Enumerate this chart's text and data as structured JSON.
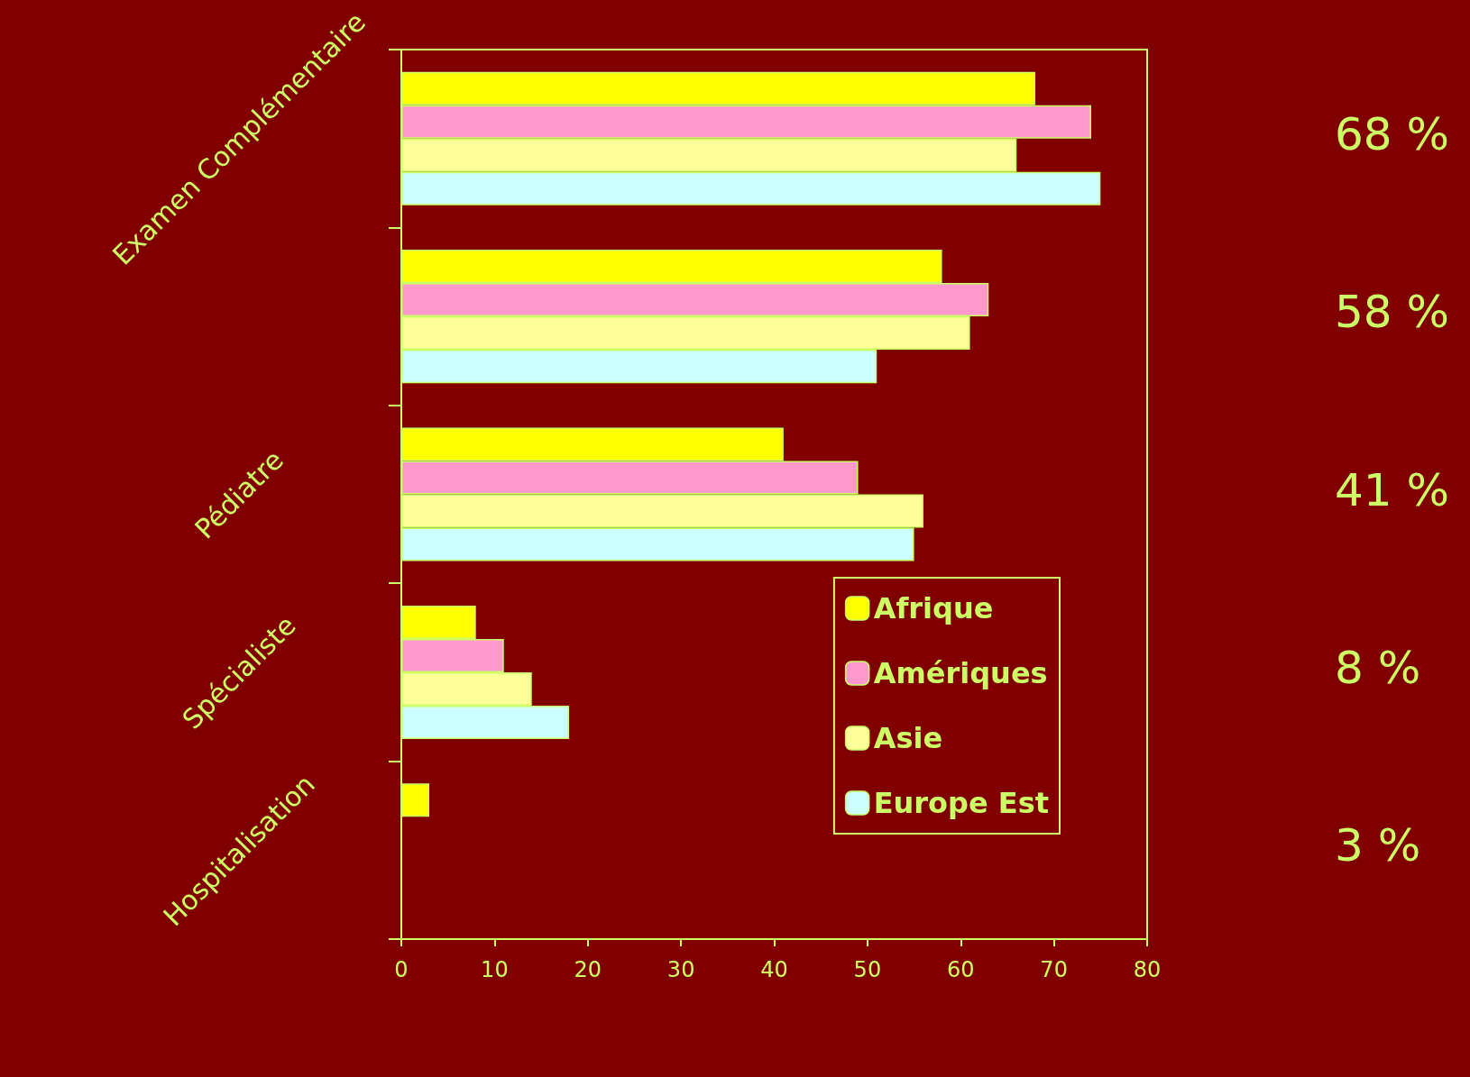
{
  "chart_data": {
    "type": "bar",
    "orientation": "horizontal",
    "categories": [
      "Examen Complémentaire",
      null,
      "Pédiatre",
      "Spécialiste",
      "Hospitalisation"
    ],
    "series": [
      {
        "name": "Afrique",
        "color": "#ffff00",
        "values": [
          68,
          58,
          41,
          8,
          3
        ]
      },
      {
        "name": "Amériques",
        "color": "#ff99cc",
        "values": [
          74,
          63,
          49,
          11,
          0
        ]
      },
      {
        "name": "Asie",
        "color": "#ffff99",
        "values": [
          66,
          61,
          56,
          14,
          0
        ]
      },
      {
        "name": "Europe Est",
        "color": "#ccffff",
        "values": [
          75,
          51,
          55,
          18,
          0
        ]
      }
    ],
    "xlim": [
      0,
      80
    ],
    "xticks": [
      0,
      10,
      20,
      30,
      40,
      50,
      60,
      70,
      80
    ],
    "annotations": [
      "68 %",
      "58 %",
      "41 %",
      "8 %",
      "3 %"
    ],
    "legend": "bottom right",
    "grid": false
  }
}
